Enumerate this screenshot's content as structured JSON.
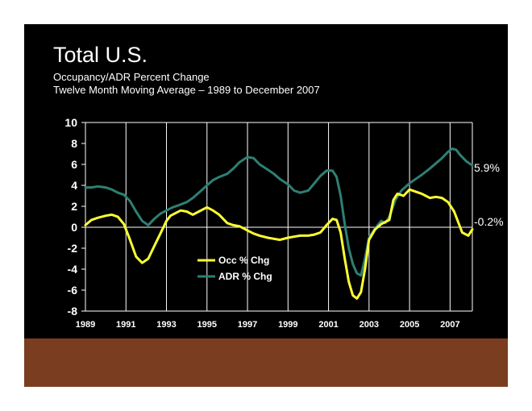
{
  "slide": {
    "title": "Total U.S.",
    "subtitle1": "Occupancy/ADR Percent Change",
    "subtitle2": "Twelve Month Moving Average – 1989 to December 2007"
  },
  "colors": {
    "background": "#000000",
    "grid": "#ffffff",
    "occ": "#ffff33",
    "adr": "#2e7f73",
    "footer": "#7a3d1f",
    "text": "#ffffff"
  },
  "chart_data": {
    "type": "line",
    "title": "Occupancy/ADR Percent Change",
    "xlabel": "",
    "ylabel": "",
    "xlim": [
      1989,
      2008.1
    ],
    "ylim": [
      -8,
      10
    ],
    "yticks": [
      10,
      8,
      6,
      4,
      2,
      0,
      -2,
      -4,
      -6,
      -8
    ],
    "xticks": [
      "1989",
      "1991",
      "1993",
      "1995",
      "1997",
      "1999",
      "2001",
      "2003",
      "2005",
      "2007"
    ],
    "legend_position": "lower-left",
    "end_labels": [
      "5.9%",
      "-0.2%"
    ],
    "series": [
      {
        "name": "Occ % Chg",
        "x": [
          1989,
          1989.3,
          1989.6,
          1990,
          1990.3,
          1990.6,
          1990.9,
          1991.2,
          1991.5,
          1991.8,
          1992.1,
          1992.4,
          1992.7,
          1993,
          1993.2,
          1993.4,
          1993.7,
          1994,
          1994.3,
          1994.6,
          1995,
          1995.3,
          1995.6,
          1996,
          1996.3,
          1996.6,
          1997,
          1997.3,
          1997.6,
          1998,
          1998.3,
          1998.6,
          1999,
          1999.3,
          1999.6,
          2000,
          2000.3,
          2000.6,
          2000.9,
          2001.2,
          2001.4,
          2001.6,
          2001.8,
          2002,
          2002.2,
          2002.4,
          2002.6,
          2002.8,
          2003,
          2003.3,
          2003.6,
          2003.8,
          2004,
          2004.2,
          2004.4,
          2004.7,
          2005,
          2005.3,
          2005.6,
          2006,
          2006.3,
          2006.6,
          2006.9,
          2007.2,
          2007.4,
          2007.6,
          2007.9,
          2008.1
        ],
        "values": [
          0.2,
          0.7,
          0.9,
          1.1,
          1.2,
          1.0,
          0.3,
          -1.2,
          -2.8,
          -3.4,
          -3.0,
          -1.8,
          -0.6,
          0.6,
          1.1,
          1.3,
          1.6,
          1.5,
          1.2,
          1.5,
          1.9,
          1.6,
          1.2,
          0.4,
          0.2,
          0.1,
          -0.3,
          -0.6,
          -0.8,
          -1.0,
          -1.1,
          -1.2,
          -1.0,
          -0.9,
          -0.8,
          -0.8,
          -0.7,
          -0.5,
          0.2,
          0.8,
          0.7,
          -0.5,
          -3.0,
          -5.2,
          -6.5,
          -6.8,
          -6.2,
          -4.0,
          -1.2,
          -0.2,
          0.3,
          0.5,
          0.7,
          2.6,
          3.2,
          3.0,
          3.6,
          3.4,
          3.2,
          2.8,
          2.9,
          2.8,
          2.4,
          1.5,
          0.5,
          -0.5,
          -0.8,
          -0.2
        ]
      },
      {
        "name": "ADR % Chg",
        "x": [
          1989,
          1989.3,
          1989.6,
          1990,
          1990.3,
          1990.6,
          1990.9,
          1991.2,
          1991.5,
          1991.8,
          1992.1,
          1992.4,
          1992.7,
          1993,
          1993.3,
          1993.6,
          1994,
          1994.3,
          1994.6,
          1995,
          1995.3,
          1995.6,
          1996,
          1996.3,
          1996.6,
          1997,
          1997.3,
          1997.6,
          1998,
          1998.3,
          1998.6,
          1999,
          1999.3,
          1999.6,
          2000,
          2000.3,
          2000.6,
          2000.9,
          2001.2,
          2001.4,
          2001.6,
          2001.8,
          2002,
          2002.2,
          2002.4,
          2002.6,
          2002.8,
          2003,
          2003.3,
          2003.6,
          2003.8,
          2004,
          2004.3,
          2004.6,
          2005,
          2005.3,
          2005.6,
          2006,
          2006.3,
          2006.6,
          2006.9,
          2007.1,
          2007.3,
          2007.5,
          2007.8,
          2008.1
        ],
        "values": [
          3.8,
          3.8,
          3.9,
          3.8,
          3.6,
          3.3,
          3.1,
          2.5,
          1.5,
          0.6,
          0.2,
          0.8,
          1.3,
          1.6,
          1.9,
          2.1,
          2.4,
          2.8,
          3.3,
          4.0,
          4.5,
          4.8,
          5.1,
          5.6,
          6.2,
          6.7,
          6.6,
          6.0,
          5.5,
          5.1,
          4.6,
          4.1,
          3.5,
          3.3,
          3.5,
          4.2,
          4.9,
          5.4,
          5.4,
          4.8,
          3.0,
          0.3,
          -2.0,
          -3.5,
          -4.4,
          -4.6,
          -3.0,
          -1.0,
          -0.1,
          0.6,
          0.4,
          1.0,
          2.6,
          3.5,
          4.2,
          4.6,
          5.0,
          5.6,
          6.1,
          6.6,
          7.2,
          7.5,
          7.4,
          6.9,
          6.3,
          5.9
        ]
      }
    ]
  }
}
